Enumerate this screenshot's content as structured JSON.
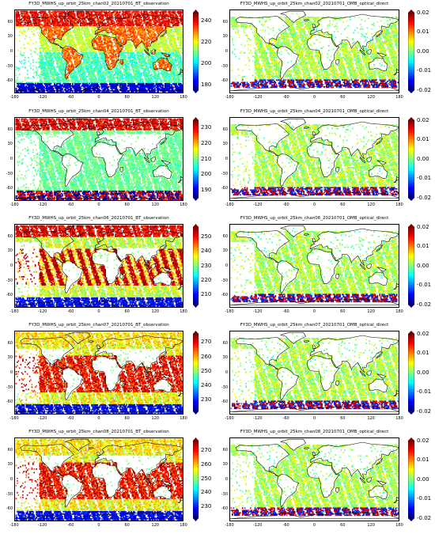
{
  "lon_ticks": [
    "-180",
    "-120",
    "-60",
    "0",
    "60",
    "120",
    "180"
  ],
  "lat_ticks": [
    "60",
    "30",
    "0",
    "-30",
    "-60"
  ],
  "colors": {
    "jet": [
      "#00007f",
      "#0000ff",
      "#007fff",
      "#00ffff",
      "#7fff7f",
      "#ffff00",
      "#ff7f00",
      "#ff0000",
      "#7f0000"
    ],
    "coast": "#000000"
  },
  "rows": [
    {
      "left": {
        "title": "FY3D_MWHS_up_orbit_25km_chan02_20210701_BT_observation",
        "cbar_ticks": [
          "240",
          "220",
          "200",
          "180"
        ],
        "range": [
          175,
          248
        ],
        "pattern": "obs02"
      },
      "right": {
        "title": "FY3D_MWHS_up_orbit_25km_chan02_20210701_OMB_optical_direct",
        "cbar_ticks": [
          "0.02",
          "0.01",
          "0.00",
          "-0.01",
          "-0.02"
        ],
        "range": [
          -0.02,
          0.02
        ],
        "pattern": "omb"
      }
    },
    {
      "left": {
        "title": "FY3D_MWHS_up_orbit_25km_chan04_20210701_BT_observation",
        "cbar_ticks": [
          "230",
          "220",
          "210",
          "200",
          "190"
        ],
        "range": [
          185,
          235
        ],
        "pattern": "obs04"
      },
      "right": {
        "title": "FY3D_MWHS_up_orbit_25km_chan04_20210701_OMB_optical_direct",
        "cbar_ticks": [
          "0.02",
          "0.01",
          "0.00",
          "-0.01",
          "-0.02"
        ],
        "range": [
          -0.02,
          0.02
        ],
        "pattern": "omb"
      }
    },
    {
      "left": {
        "title": "FY3D_MWHS_up_orbit_25km_chan06_20210701_BT_observation",
        "cbar_ticks": [
          "250",
          "240",
          "230",
          "220",
          "210"
        ],
        "range": [
          203,
          257
        ],
        "pattern": "obs06"
      },
      "right": {
        "title": "FY3D_MWHS_up_orbit_25km_chan06_20210701_OMB_optical_direct",
        "cbar_ticks": [
          "0.02",
          "0.01",
          "0.00",
          "-0.01",
          "-0.02"
        ],
        "range": [
          -0.02,
          0.02
        ],
        "pattern": "omb"
      }
    },
    {
      "left": {
        "title": "FY3D_MWHS_up_orbit_25km_chan07_20210701_BT_observation",
        "cbar_ticks": [
          "270",
          "260",
          "250",
          "240",
          "230"
        ],
        "range": [
          222,
          276
        ],
        "pattern": "obs07"
      },
      "right": {
        "title": "FY3D_MWHS_up_orbit_25km_chan07_20210701_OMB_optical_direct",
        "cbar_ticks": [
          "0.02",
          "0.01",
          "0.00",
          "-0.01",
          "-0.02"
        ],
        "range": [
          -0.02,
          0.02
        ],
        "pattern": "omb"
      }
    },
    {
      "left": {
        "title": "FY3D_MWHS_up_orbit_25km_chan08_20210701_BT_observation",
        "cbar_ticks": [
          "270",
          "260",
          "250",
          "240",
          "230"
        ],
        "range": [
          222,
          277
        ],
        "pattern": "obs08"
      },
      "right": {
        "title": "FY3D_MWHS_up_orbit_25km_chan08_20210701_OMB_optical_direct",
        "cbar_ticks": [
          "0.02",
          "0.01",
          "0.00",
          "-0.01",
          "-0.02"
        ],
        "range": [
          -0.02,
          0.02
        ],
        "pattern": "omb"
      }
    }
  ]
}
